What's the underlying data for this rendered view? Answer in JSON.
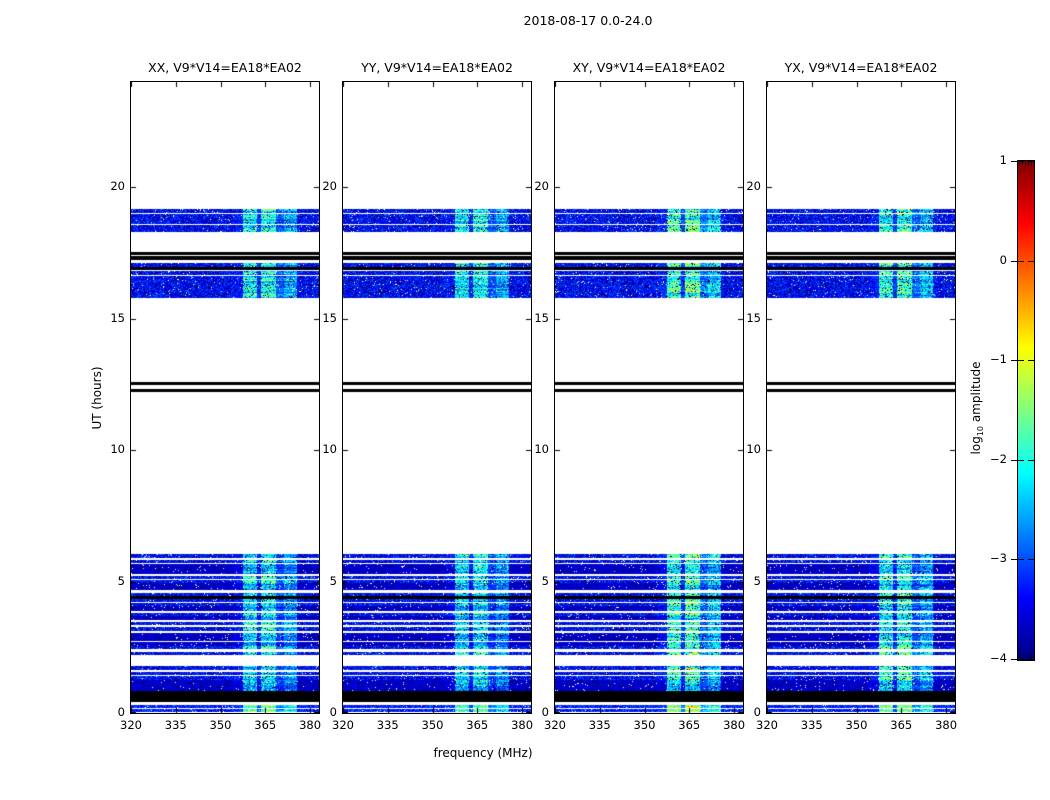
{
  "figure": {
    "background": "#ffffff"
  },
  "chart_data": {
    "type": "heatmap",
    "title": "2018-08-17 0.0-24.0",
    "xlabel": "frequency (MHz)",
    "ylabel": "UT (hours)",
    "x_range_mhz": [
      320,
      383
    ],
    "y_range_hours": [
      0,
      24
    ],
    "x_tick_values": [
      320,
      335,
      350,
      365,
      380
    ],
    "x_tick_labels": [
      "320",
      "335",
      "350",
      "365",
      "380"
    ],
    "y_tick_values": [
      0,
      5,
      10,
      15,
      20
    ],
    "y_tick_labels": [
      "0",
      "5",
      "10",
      "15",
      "20"
    ],
    "grid": false,
    "panels": [
      {
        "pol": "XX",
        "label": "XX, V9*V14=EA18*EA02"
      },
      {
        "pol": "YY",
        "label": "YY, V9*V14=EA18*EA02"
      },
      {
        "pol": "XY",
        "label": "XY, V9*V14=EA18*EA02"
      },
      {
        "pol": "YX",
        "label": "YX, V9*V14=EA18*EA02"
      }
    ],
    "colorbar": {
      "label_pre": "log",
      "label_sub": "10",
      "label_post": " amplitude",
      "tick_values": [
        1,
        0,
        -1,
        -2,
        -3,
        -4
      ],
      "tick_labels": [
        "1",
        "0",
        "−1",
        "−2",
        "−3",
        "−4"
      ],
      "range": [
        -4,
        1
      ],
      "colormap": "jet",
      "gradient_stops": [
        "#000080",
        "#0000ff",
        "#00ffff",
        "#ffff00",
        "#ff0000",
        "#800000"
      ]
    },
    "rfi_bands_mhz": [
      [
        354,
        357.5
      ],
      [
        357.5,
        362
      ],
      [
        362,
        363.5
      ],
      [
        363.5,
        368.5
      ],
      [
        368.5,
        371
      ],
      [
        371,
        375.5
      ]
    ],
    "rfi_band_strength": [
      0.6,
      1.9,
      0.8,
      2.0,
      1.1,
      1.5
    ],
    "stripe_kinds": {
      "b": "blue speckled scan row",
      "d": "dense dark-blue band",
      "k": "flagged solid black band",
      "B": "bright row with strong RFI"
    },
    "time_stripes_hours": [
      [
        19.05,
        19.16,
        "b"
      ],
      [
        18.9,
        18.99,
        "b"
      ],
      [
        18.76,
        18.85,
        "b"
      ],
      [
        18.62,
        18.71,
        "b"
      ],
      [
        18.48,
        18.58,
        "b"
      ],
      [
        18.35,
        18.44,
        "b"
      ],
      [
        17.45,
        17.55,
        "k"
      ],
      [
        17.28,
        17.37,
        "k"
      ],
      [
        17.0,
        17.1,
        "b"
      ],
      [
        16.87,
        16.95,
        "k"
      ],
      [
        16.7,
        16.8,
        "b"
      ],
      [
        16.55,
        16.64,
        "b"
      ],
      [
        16.4,
        16.49,
        "b"
      ],
      [
        16.25,
        16.34,
        "b"
      ],
      [
        16.1,
        16.19,
        "b"
      ],
      [
        15.95,
        16.04,
        "b"
      ],
      [
        15.81,
        15.9,
        "b"
      ],
      [
        12.52,
        12.59,
        "k"
      ],
      [
        12.26,
        12.33,
        "k"
      ],
      [
        5.93,
        6.03,
        "b"
      ],
      [
        5.74,
        5.82,
        "b"
      ],
      [
        5.57,
        5.68,
        "d"
      ],
      [
        5.34,
        5.52,
        "d"
      ],
      [
        5.12,
        5.2,
        "b"
      ],
      [
        4.99,
        5.06,
        "b"
      ],
      [
        4.71,
        4.94,
        "d"
      ],
      [
        4.48,
        4.56,
        "b"
      ],
      [
        4.37,
        4.44,
        "k"
      ],
      [
        4.25,
        4.33,
        "b"
      ],
      [
        4.1,
        4.18,
        "b"
      ],
      [
        3.91,
        4.06,
        "d"
      ],
      [
        3.72,
        3.8,
        "b"
      ],
      [
        3.56,
        3.68,
        "d"
      ],
      [
        3.38,
        3.46,
        "b"
      ],
      [
        3.15,
        3.27,
        "b"
      ],
      [
        2.78,
        3.03,
        "d"
      ],
      [
        2.59,
        2.71,
        "d"
      ],
      [
        2.46,
        2.54,
        "b"
      ],
      [
        2.24,
        2.32,
        "b"
      ],
      [
        1.68,
        1.79,
        "b"
      ],
      [
        1.49,
        1.57,
        "b"
      ],
      [
        1.31,
        1.41,
        "b"
      ],
      [
        0.88,
        1.25,
        "d"
      ],
      [
        0.45,
        0.83,
        "k"
      ],
      [
        0.22,
        0.3,
        "B"
      ],
      [
        0.09,
        0.17,
        "B"
      ]
    ]
  }
}
